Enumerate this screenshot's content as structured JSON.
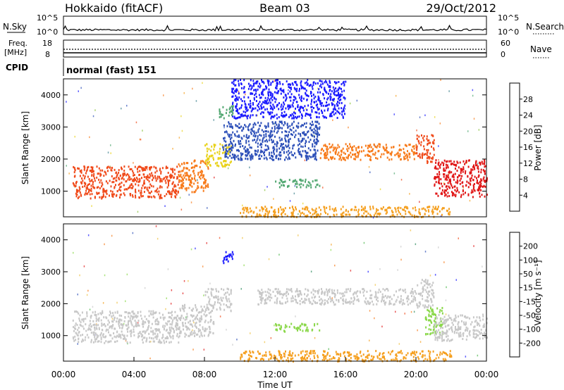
{
  "header": {
    "station": "Hokkaido (fitACF)",
    "beam": "Beam 03",
    "date": "29/Oct/2012"
  },
  "summary": {
    "nsky_label": "N.Sky",
    "nsky_ticks": [
      "10^5",
      "10^0"
    ],
    "nsearch_label": "N.Search",
    "freq_label_1": "Freq.",
    "freq_label_2": "[MHz]",
    "freq_ticks": [
      "18",
      "8"
    ],
    "nave_label": "Nave",
    "nave_ticks": [
      "60",
      "0"
    ],
    "cpid_label": "CPID",
    "cpid_value": "normal (fast) 151"
  },
  "chart_data": [
    {
      "type": "heatmap",
      "name": "power-panel",
      "ylabel": "Slant Range [km]",
      "xlabel": "",
      "yticks": [
        "1000",
        "2000",
        "3000",
        "4000"
      ],
      "ylim": [
        200,
        4500
      ],
      "colorbar": {
        "label": "Power [dB]",
        "ticks": [
          "4",
          "8",
          "12",
          "16",
          "20",
          "24",
          "28"
        ],
        "colors": [
          "#1a1aff",
          "#2c4fb8",
          "#3a7f8c",
          "#4fa66f",
          "#88c23a",
          "#e8d21a",
          "#f5a020",
          "#f77a1a",
          "#f04a1a",
          "#e01515"
        ]
      },
      "regions": [
        {
          "t0": 0.5,
          "t1": 6.5,
          "r0": 800,
          "r1": 1800,
          "c": "#f04a1a"
        },
        {
          "t0": 6.5,
          "t1": 8.2,
          "r0": 1000,
          "r1": 2000,
          "c": "#f77a1a"
        },
        {
          "t0": 8.0,
          "t1": 9.5,
          "r0": 1800,
          "r1": 2500,
          "c": "#e8d21a"
        },
        {
          "t0": 9.0,
          "t1": 14.5,
          "r0": 2000,
          "r1": 3200,
          "c": "#2c4fb8"
        },
        {
          "t0": 12.0,
          "t1": 14.5,
          "r0": 1150,
          "r1": 1400,
          "c": "#4fa66f"
        },
        {
          "t0": 14.5,
          "t1": 20.0,
          "r0": 2000,
          "r1": 2500,
          "c": "#f77a1a"
        },
        {
          "t0": 20.0,
          "t1": 21.0,
          "r0": 1900,
          "r1": 2800,
          "c": "#f04a1a"
        },
        {
          "t0": 21.0,
          "t1": 24.0,
          "r0": 850,
          "r1": 2000,
          "c": "#e01515"
        },
        {
          "t0": 9.5,
          "t1": 16.0,
          "r0": 3300,
          "r1": 4500,
          "c": "#1a1aff"
        },
        {
          "t0": 8.8,
          "t1": 9.6,
          "r0": 3300,
          "r1": 3700,
          "c": "#4fa66f"
        },
        {
          "t0": 10.0,
          "t1": 22.0,
          "r0": 220,
          "r1": 550,
          "c": "#f5a020"
        }
      ]
    },
    {
      "type": "heatmap",
      "name": "velocity-panel",
      "ylabel": "Slant Range [km]",
      "xlabel": "Time UT",
      "yticks": [
        "1000",
        "2000",
        "3000",
        "4000"
      ],
      "ylim": [
        200,
        4500
      ],
      "xticks": [
        "00:00",
        "04:00",
        "08:00",
        "12:00",
        "16:00",
        "20:00",
        "00:00"
      ],
      "colorbar": {
        "label": "Velocity [m s⁻¹]",
        "ticks": [
          "-200",
          "-100",
          "-50",
          "-15",
          "15",
          "50",
          "100",
          "200"
        ],
        "colors": [
          "#e01515",
          "#f04a1a",
          "#f77a1a",
          "#f5a020",
          "#f0c040",
          "#c8c8c8",
          "#c8c8c8",
          "#8ad84a",
          "#4fb84f",
          "#2c8c5c",
          "#2c4fb8",
          "#1a1aff"
        ]
      },
      "regions": [
        {
          "t0": 0.5,
          "t1": 6.5,
          "r0": 800,
          "r1": 1800,
          "c": "#c8c8c8"
        },
        {
          "t0": 6.5,
          "t1": 8.5,
          "r0": 1000,
          "r1": 2000,
          "c": "#c8c8c8"
        },
        {
          "t0": 8.0,
          "t1": 9.5,
          "r0": 1800,
          "r1": 2500,
          "c": "#c8c8c8"
        },
        {
          "t0": 11.0,
          "t1": 20.0,
          "r0": 2000,
          "r1": 2500,
          "c": "#c8c8c8"
        },
        {
          "t0": 12.0,
          "t1": 14.5,
          "r0": 1150,
          "r1": 1400,
          "c": "#8ad84a"
        },
        {
          "t0": 20.0,
          "t1": 21.0,
          "r0": 1900,
          "r1": 2800,
          "c": "#c8c8c8"
        },
        {
          "t0": 20.5,
          "t1": 21.5,
          "r0": 1000,
          "r1": 1900,
          "c": "#8ad84a"
        },
        {
          "t0": 21.0,
          "t1": 24.0,
          "r0": 850,
          "r1": 1700,
          "c": "#c8c8c8"
        },
        {
          "t0": 9.0,
          "t1": 9.6,
          "r0": 3300,
          "r1": 3700,
          "c": "#1a1aff"
        },
        {
          "t0": 10.0,
          "t1": 22.0,
          "r0": 220,
          "r1": 550,
          "c": "#f5a020"
        }
      ]
    }
  ]
}
